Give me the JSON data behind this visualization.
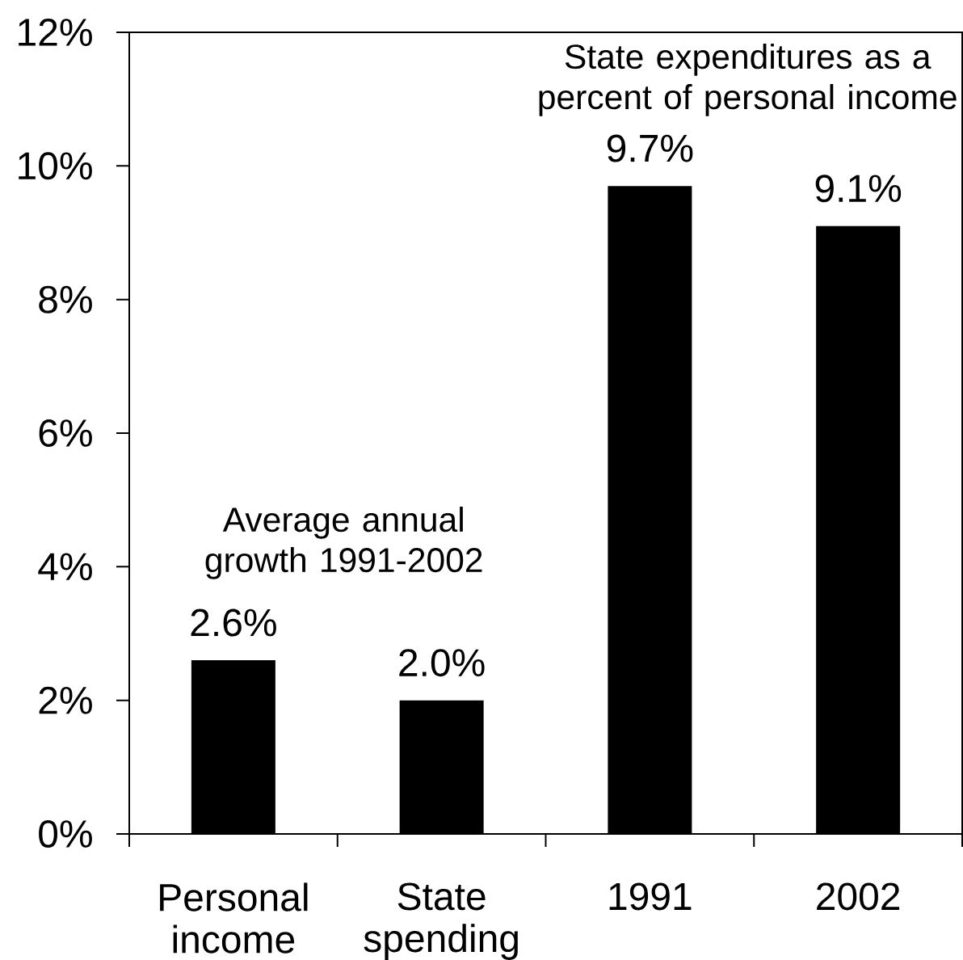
{
  "chart_data": {
    "type": "bar",
    "categories": [
      "Personal income",
      "State spending",
      "1991",
      "2002"
    ],
    "values": [
      2.6,
      2.0,
      9.7,
      9.1
    ],
    "value_labels": [
      "2.6%",
      "2.0%",
      "9.7%",
      "9.1%"
    ],
    "color": "#000000",
    "ylim": [
      0,
      12
    ],
    "yticks": [
      {
        "value": 0,
        "label": "0%"
      },
      {
        "value": 2,
        "label": "2%"
      },
      {
        "value": 4,
        "label": "4%"
      },
      {
        "value": 6,
        "label": "6%"
      },
      {
        "value": 8,
        "label": "8%"
      },
      {
        "value": 10,
        "label": "10%"
      },
      {
        "value": 12,
        "label": "12%"
      }
    ],
    "annotations": [
      "Average annual growth 1991-2002",
      "State expenditures as a percent of personal income"
    ]
  }
}
